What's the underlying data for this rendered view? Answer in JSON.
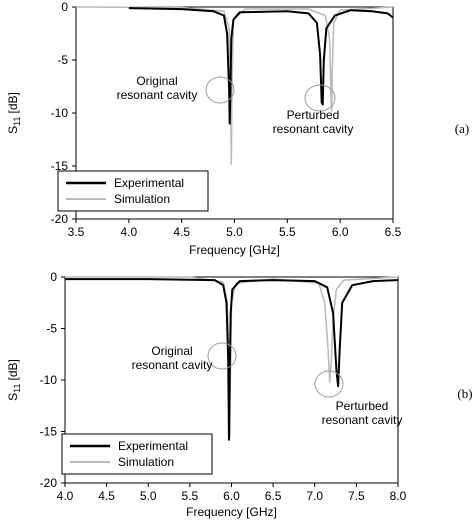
{
  "chart_data": [
    {
      "type": "line",
      "panel_label": "(a)",
      "xlabel": "Frequency [GHz]",
      "ylabel_main": "S",
      "ylabel_sub": "11",
      "ylabel_unit": "[dB]",
      "xlim": [
        3.5,
        6.5
      ],
      "ylim": [
        -20,
        0
      ],
      "xticks": [
        "3.5",
        "4.0",
        "4.5",
        "5.0",
        "5.5",
        "6.0",
        "6.5"
      ],
      "yticks": [
        "0",
        "-5",
        "-10",
        "-15",
        "-20"
      ],
      "grid": false,
      "legend_position": "bottom-left",
      "series": [
        {
          "name": "Experimental",
          "color": "#000000",
          "x": [
            4.0,
            4.5,
            4.8,
            4.9,
            4.93,
            4.95,
            4.955,
            4.96,
            4.97,
            4.99,
            5.05,
            5.5,
            5.7,
            5.78,
            5.81,
            5.825,
            5.835,
            5.845,
            5.87,
            5.95,
            6.1,
            6.3,
            6.45,
            6.5
          ],
          "y": [
            -0.1,
            -0.2,
            -0.4,
            -0.8,
            -2.5,
            -8.0,
            -11.0,
            -8.5,
            -3.0,
            -1.2,
            -0.5,
            -0.4,
            -0.6,
            -1.5,
            -4.5,
            -9.0,
            -9.2,
            -5.0,
            -2.0,
            -0.8,
            -0.3,
            -0.4,
            -0.6,
            -1.0
          ]
        },
        {
          "name": "Simulation",
          "color": "#bbbbbb",
          "x": [
            3.5,
            4.5,
            4.9,
            4.95,
            4.965,
            4.97,
            4.975,
            4.99,
            5.1,
            5.7,
            5.86,
            5.9,
            5.915,
            5.92,
            5.925,
            5.94,
            6.0,
            6.5
          ],
          "y": [
            0,
            -0.05,
            -0.4,
            -2.0,
            -9.0,
            -14.8,
            -8.0,
            -1.2,
            -0.2,
            -0.2,
            -0.8,
            -3.0,
            -9.0,
            -9.8,
            -6.0,
            -1.5,
            -0.3,
            0
          ]
        }
      ],
      "annotations": [
        {
          "lines": [
            "Original",
            "resonant cavity"
          ],
          "x": 4.97,
          "y": -7.7
        },
        {
          "lines": [
            "Perturbed",
            "resonant cavity"
          ],
          "x": 5.87,
          "y": -8.5
        }
      ]
    },
    {
      "type": "line",
      "panel_label": "(b)",
      "xlabel": "Frequency [GHz]",
      "ylabel_main": "S",
      "ylabel_sub": "11",
      "ylabel_unit": "[dB]",
      "xlim": [
        4.0,
        8.0
      ],
      "ylim": [
        -20,
        0
      ],
      "xticks": [
        "4.0",
        "4.5",
        "5.0",
        "5.5",
        "6.0",
        "6.5",
        "7.0",
        "7.5",
        "8.0"
      ],
      "yticks": [
        "0",
        "-5",
        "-10",
        "-15",
        "-20"
      ],
      "grid": false,
      "legend_position": "bottom-left",
      "series": [
        {
          "name": "Experimental",
          "color": "#000000",
          "x": [
            4.0,
            5.0,
            5.8,
            5.9,
            5.94,
            5.96,
            5.97,
            5.98,
            5.99,
            6.01,
            6.1,
            6.5,
            7.0,
            7.15,
            7.22,
            7.26,
            7.28,
            7.3,
            7.33,
            7.45,
            7.7,
            8.0
          ],
          "y": [
            -0.2,
            -0.2,
            -0.3,
            -0.8,
            -2.5,
            -8.0,
            -15.8,
            -9.0,
            -3.5,
            -1.2,
            -0.4,
            -0.3,
            -0.4,
            -1.0,
            -3.5,
            -9.0,
            -10.6,
            -7.0,
            -2.5,
            -0.8,
            -0.4,
            -0.3
          ]
        },
        {
          "name": "Simulation",
          "color": "#bbbbbb",
          "x": [
            4.0,
            5.5,
            5.9,
            5.95,
            5.97,
            5.98,
            5.985,
            6.0,
            6.05,
            6.5,
            7.05,
            7.12,
            7.16,
            7.18,
            7.2,
            7.22,
            7.26,
            7.35,
            8.0
          ],
          "y": [
            0,
            0,
            -0.5,
            -2.5,
            -9.0,
            -15.5,
            -10.0,
            -2.5,
            -0.6,
            -0.2,
            -0.6,
            -2.5,
            -7.0,
            -10.2,
            -8.0,
            -4.0,
            -1.2,
            -0.3,
            0
          ]
        }
      ],
      "annotations": [
        {
          "lines": [
            "Original",
            "resonant cavity"
          ],
          "x": 5.97,
          "y": -7.5
        },
        {
          "lines": [
            "Perturbed",
            "resonant cavity"
          ],
          "x": 7.27,
          "y": -10.4
        }
      ]
    }
  ]
}
